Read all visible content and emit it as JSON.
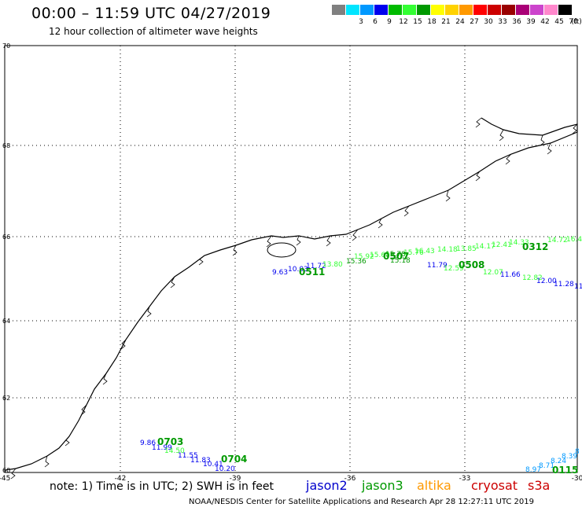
{
  "title": "00:00 – 11:59 UTC 04/27/2019",
  "subtitle": "12 hour collection of altimeter wave heights",
  "legend": {
    "unit": "(ft)",
    "bins": [
      {
        "label": "",
        "color": "#808080"
      },
      {
        "label": "3",
        "color": "#00e5ff"
      },
      {
        "label": "6",
        "color": "#0099ff"
      },
      {
        "label": "9",
        "color": "#0000ee"
      },
      {
        "label": "12",
        "color": "#00bb00"
      },
      {
        "label": "15",
        "color": "#33ff33"
      },
      {
        "label": "18",
        "color": "#009900"
      },
      {
        "label": "21",
        "color": "#ffff00"
      },
      {
        "label": "24",
        "color": "#ffd200"
      },
      {
        "label": "27",
        "color": "#ff9900"
      },
      {
        "label": "30",
        "color": "#ff0000"
      },
      {
        "label": "33",
        "color": "#cc0000"
      },
      {
        "label": "36",
        "color": "#990000"
      },
      {
        "label": "39",
        "color": "#aa0077"
      },
      {
        "label": "42",
        "color": "#cc44cc"
      },
      {
        "label": "45",
        "color": "#ff88cc"
      },
      {
        "label": "70",
        "color": "#000000"
      }
    ]
  },
  "axes": {
    "lon_labels": [
      "-45",
      "-42",
      "-39",
      "-36",
      "-33",
      "-30"
    ],
    "lat_labels": [
      "70",
      "68",
      "66",
      "64",
      "62",
      "60"
    ]
  },
  "tracks": {
    "points": [
      {
        "t": "9.63",
        "c": "#0000ee"
      },
      {
        "t": "10.03",
        "c": "#0000ee"
      },
      {
        "t": "11.72",
        "c": "#0000ee"
      },
      {
        "t": "13.80",
        "c": "#33ff33"
      },
      {
        "t": "15.36",
        "c": "#009900"
      },
      {
        "t": "15.92",
        "c": "#33ff33"
      },
      {
        "t": "15.60",
        "c": "#33ff33"
      },
      {
        "t": "15.78",
        "c": "#009900"
      },
      {
        "t": "15.76",
        "c": "#33ff33"
      },
      {
        "t": "15.18",
        "c": "#009900"
      },
      {
        "t": "16.43",
        "c": "#33ff33"
      },
      {
        "t": "11.79",
        "c": "#0000ee"
      },
      {
        "t": "14.18",
        "c": "#33ff33"
      },
      {
        "t": "13.85",
        "c": "#33ff33"
      },
      {
        "t": "14.17",
        "c": "#33ff33"
      },
      {
        "t": "12.59",
        "c": "#33ff33"
      },
      {
        "t": "12.41",
        "c": "#33ff33"
      },
      {
        "t": "12.07",
        "c": "#33ff33"
      },
      {
        "t": "14.33",
        "c": "#33ff33"
      },
      {
        "t": "11.66",
        "c": "#0000ee"
      },
      {
        "t": "12.82",
        "c": "#33ff33"
      },
      {
        "t": "14.72",
        "c": "#33ff33"
      },
      {
        "t": "12.00",
        "c": "#0000ee"
      },
      {
        "t": "16.4",
        "c": "#33ff33"
      },
      {
        "t": "11.28",
        "c": "#0000ee"
      },
      {
        "t": "11",
        "c": "#0000ee"
      },
      {
        "t": "9.86",
        "c": "#0000ee"
      },
      {
        "t": "11.99",
        "c": "#0000ee"
      },
      {
        "t": "14.50",
        "c": "#33ff33"
      },
      {
        "t": "11.55",
        "c": "#0000ee"
      },
      {
        "t": "11.83",
        "c": "#0000ee"
      },
      {
        "t": "10.41",
        "c": "#0000ee"
      },
      {
        "t": "10.20",
        "c": "#0000ee"
      },
      {
        "t": "8.97",
        "c": "#0099ff"
      },
      {
        "t": "8.71",
        "c": "#0099ff"
      },
      {
        "t": "8.24",
        "c": "#0099ff"
      },
      {
        "t": "8.39",
        "c": "#0099ff"
      },
      {
        "t": "8",
        "c": "#0099ff"
      }
    ],
    "time_tags": [
      {
        "t": "0511",
        "c": "#009900"
      },
      {
        "t": "0507",
        "c": "#009900"
      },
      {
        "t": "0508",
        "c": "#009900"
      },
      {
        "t": "0312",
        "c": "#009900"
      },
      {
        "t": "0703",
        "c": "#009900"
      },
      {
        "t": "0704",
        "c": "#009900"
      },
      {
        "t": "0115",
        "c": "#009900"
      }
    ]
  },
  "footer": {
    "note": "note: 1) Time is in UTC; 2) SWH is in feet",
    "satellites": [
      {
        "name": "jason2",
        "color": "#0000cc"
      },
      {
        "name": "jason3",
        "color": "#009900"
      },
      {
        "name": "altika",
        "color": "#ff9900"
      },
      {
        "name": "cryosat",
        "color": "#cc0000"
      },
      {
        "name": "s3a",
        "color": "#cc0000"
      }
    ],
    "credit": "NOAA/NESDIS Center for Satellite Applications and Research   Apr 28 12:27:11 UTC 2019"
  }
}
